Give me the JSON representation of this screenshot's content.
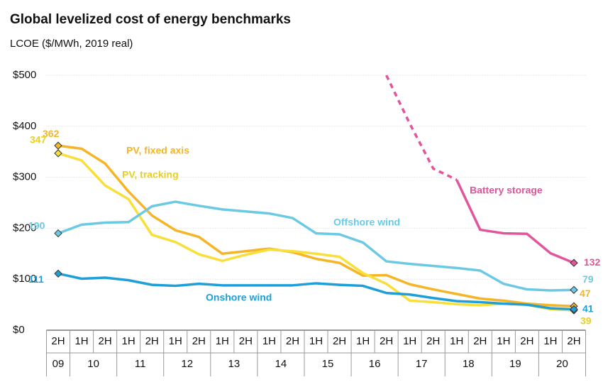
{
  "chart_data": {
    "type": "line",
    "title": "Global levelized cost of energy benchmarks",
    "subtitle": "LCOE ($/MWh, 2019 real)",
    "categories": [
      "2H",
      "1H",
      "2H",
      "1H",
      "2H",
      "1H",
      "2H",
      "1H",
      "2H",
      "1H",
      "2H",
      "1H",
      "2H",
      "1H",
      "2H",
      "1H",
      "2H",
      "1H",
      "2H",
      "1H",
      "2H",
      "1H",
      "2H"
    ],
    "year_labels": [
      "09",
      "10",
      "11",
      "12",
      "13",
      "14",
      "15",
      "16",
      "17",
      "18",
      "19",
      "20"
    ],
    "ylim": [
      0,
      500
    ],
    "yticks": [
      {
        "value": 0,
        "label": "$0"
      },
      {
        "value": 100,
        "label": "$100"
      },
      {
        "value": 200,
        "label": "$200"
      },
      {
        "value": 300,
        "label": "$300"
      },
      {
        "value": 400,
        "label": "$400"
      },
      {
        "value": 500,
        "label": "$500"
      }
    ],
    "grid": true,
    "series": [
      {
        "name": "PV, fixed axis",
        "color": "#f5b526",
        "labels_at": [
          0,
          22
        ],
        "values": [
          362,
          356,
          327,
          272,
          225,
          196,
          183,
          150,
          155,
          160,
          153,
          140,
          132,
          107,
          108,
          90,
          80,
          71,
          62,
          58,
          52,
          49,
          47
        ]
      },
      {
        "name": "PV, tracking",
        "color": "#f8df3a",
        "labels_at": [
          0,
          22
        ],
        "values": [
          347,
          333,
          284,
          257,
          187,
          173,
          149,
          136,
          148,
          158,
          155,
          150,
          144,
          112,
          91,
          58,
          55,
          51,
          49,
          52,
          50,
          41,
          39
        ]
      },
      {
        "name": "Offshore wind",
        "color": "#6cc9e4",
        "labels_at": [
          0,
          22
        ],
        "values": [
          190,
          207,
          211,
          212,
          243,
          252,
          244,
          237,
          233,
          229,
          220,
          190,
          188,
          172,
          135,
          130,
          126,
          122,
          117,
          91,
          80,
          78,
          79
        ]
      },
      {
        "name": "Onshore wind",
        "color": "#1f9fd8",
        "labels_at": [
          0,
          22
        ],
        "values": [
          111,
          101,
          103,
          98,
          89,
          87,
          91,
          88,
          88,
          88,
          88,
          92,
          89,
          87,
          73,
          70,
          63,
          57,
          55,
          52,
          50,
          43,
          41
        ]
      },
      {
        "name": "Battery storage",
        "color": "#e2559b",
        "labels_at": [
          22
        ],
        "dash_end": 17,
        "values": [
          null,
          null,
          null,
          null,
          null,
          null,
          null,
          null,
          null,
          null,
          null,
          null,
          null,
          null,
          500,
          405,
          317,
          295,
          197,
          190,
          189,
          151,
          132
        ]
      }
    ]
  }
}
